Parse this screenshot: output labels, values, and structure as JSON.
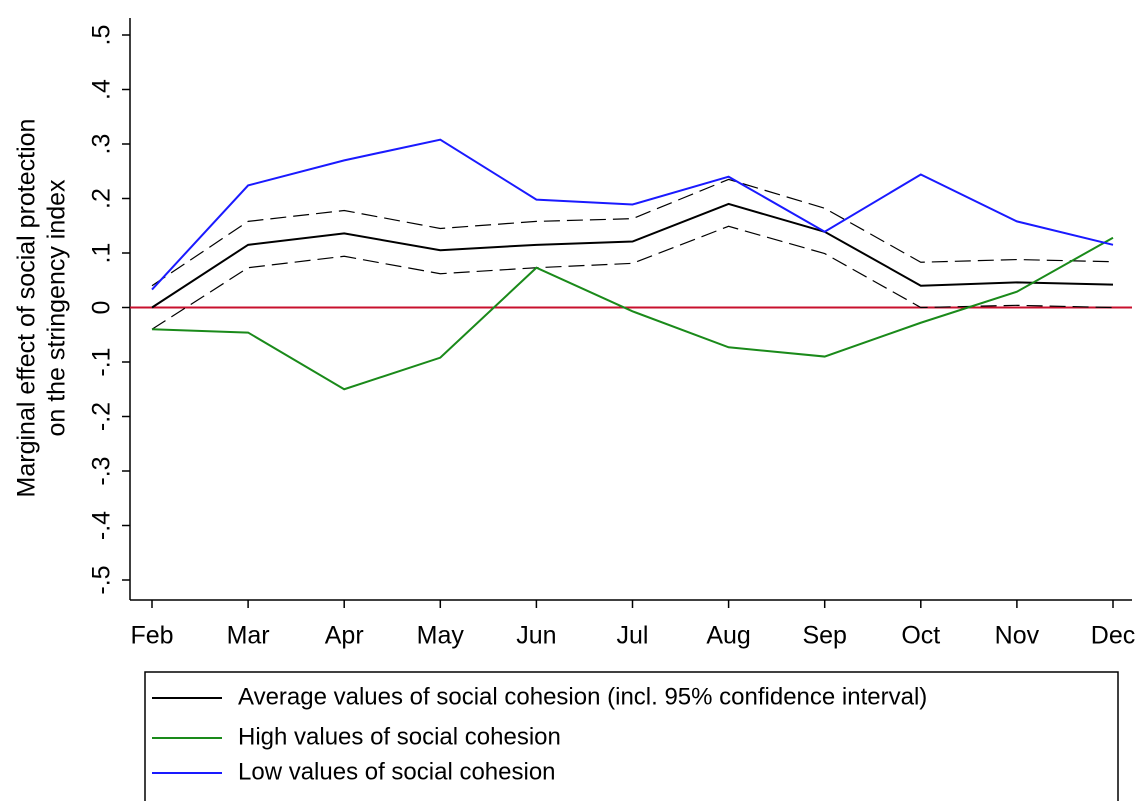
{
  "chart_data": {
    "type": "line",
    "ylabel": [
      "Marginal effect of social protection",
      "on the stringency index"
    ],
    "categories": [
      "Feb",
      "Mar",
      "Apr",
      "May",
      "Jun",
      "Jul",
      "Aug",
      "Sep",
      "Oct",
      "Nov",
      "Dec"
    ],
    "series": [
      {
        "name": "Average values of social cohesion (incl. 95% confidence interval)",
        "color": "#000000",
        "values": [
          0,
          0.115,
          0.136,
          0.105,
          0.115,
          0.121,
          0.19,
          0.139,
          0.04,
          0.046,
          0.042
        ],
        "ci_upper": [
          0.04,
          0.158,
          0.178,
          0.145,
          0.158,
          0.163,
          0.235,
          0.182,
          0.083,
          0.088,
          0.084
        ],
        "ci_lower": [
          -0.04,
          0.073,
          0.094,
          0.062,
          0.073,
          0.081,
          0.149,
          0.099,
          0,
          0.004,
          0
        ]
      },
      {
        "name": "High values of social cohesion",
        "color": "#1a8a1a",
        "values": [
          -0.04,
          -0.046,
          -0.15,
          -0.092,
          0.073,
          -0.007,
          -0.073,
          -0.09,
          -0.028,
          0.029,
          0.128
        ]
      },
      {
        "name": "Low values of social cohesion",
        "color": "#1a1aff",
        "values": [
          0.033,
          0.224,
          0.27,
          0.308,
          0.198,
          0.189,
          0.24,
          0.139,
          0.244,
          0.158,
          0.115
        ]
      }
    ],
    "reference_line": 0,
    "reference_color": "#c8102e",
    "ylim": [
      -0.5,
      0.5
    ],
    "yticks": [
      {
        "value": -0.5,
        "label": "-.5"
      },
      {
        "value": -0.4,
        "label": "-.4"
      },
      {
        "value": -0.3,
        "label": "-.3"
      },
      {
        "value": -0.2,
        "label": "-.2"
      },
      {
        "value": -0.1,
        "label": "-.1"
      },
      0,
      {
        "value": 0.1,
        "label": ".1"
      },
      {
        "value": 0.2,
        "label": ".2"
      },
      {
        "value": 0.3,
        "label": ".3"
      },
      {
        "value": 0.4,
        "label": ".4"
      },
      {
        "value": 0.5,
        "label": ".5"
      }
    ]
  }
}
